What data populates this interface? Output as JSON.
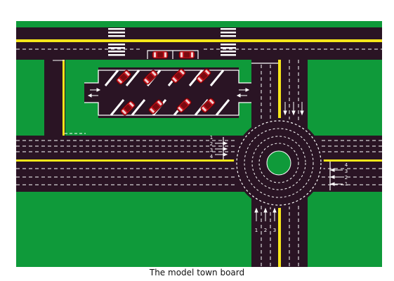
{
  "caption": "The model town board",
  "colors": {
    "grass": "#0f9a3a",
    "road": "#2a1424",
    "yellow_line": "#f5e619",
    "marking": "#ffffff",
    "car_body": "#c8141e"
  },
  "lane_labels": {
    "west_approach": [
      "1",
      "2",
      "3",
      "4"
    ],
    "east_approach": [
      "1",
      "2",
      "3",
      "4"
    ],
    "south_approach": [
      "1",
      "2",
      "3"
    ]
  },
  "features": {
    "roundabout": true,
    "parking_bays": 8,
    "street_parked_cars": 2,
    "crosswalks": 2
  }
}
